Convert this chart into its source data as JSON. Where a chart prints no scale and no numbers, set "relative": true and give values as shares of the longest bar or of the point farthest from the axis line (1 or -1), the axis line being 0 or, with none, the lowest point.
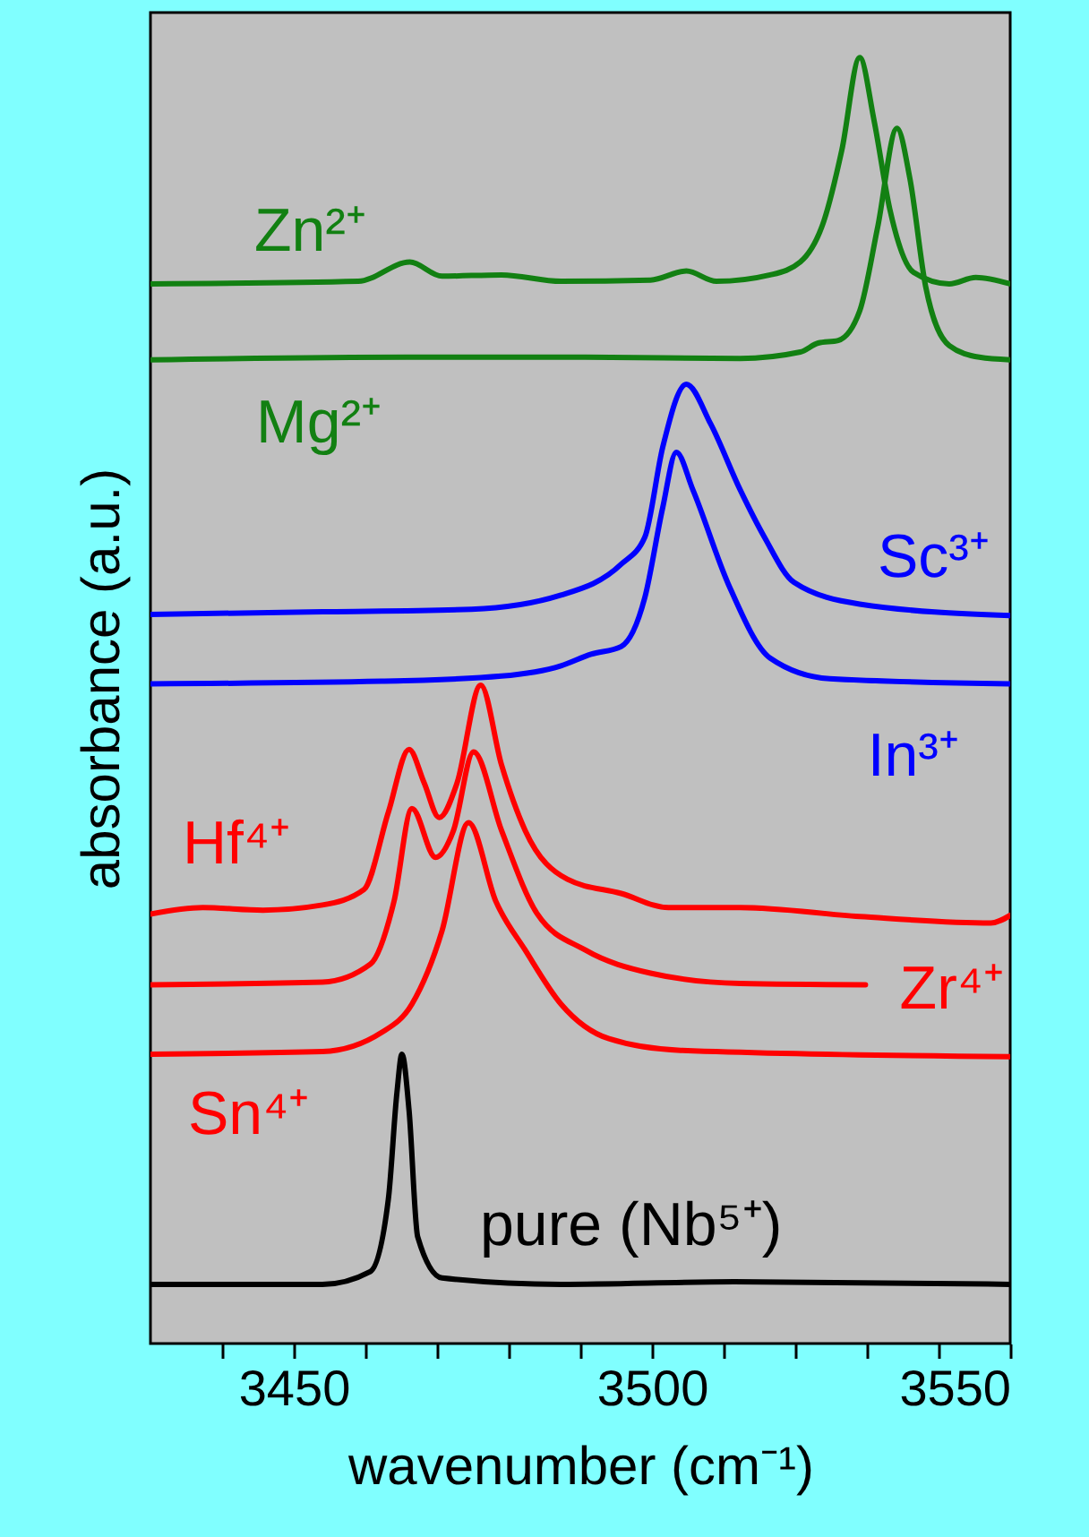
{
  "chart_data": {
    "type": "line",
    "relative": true,
    "xlabel": "wavenumber (cm⁻¹)",
    "ylabel": "absorbance (a.u.)",
    "xlim": [
      3430,
      3550
    ],
    "xticks": [
      {
        "value": 3440,
        "label": null
      },
      3450,
      {
        "value": 3460,
        "label": null
      },
      {
        "value": 3470,
        "label": null
      },
      {
        "value": 3480,
        "label": null
      },
      {
        "value": 3490,
        "label": null
      },
      3500,
      {
        "value": 3510,
        "label": null
      },
      {
        "value": 3520,
        "label": null
      },
      {
        "value": 3530,
        "label": null
      },
      {
        "value": 3540,
        "label": null
      },
      3550
    ],
    "series": [
      {
        "name": "Zn²⁺",
        "color": "#128012",
        "x": [
          3430,
          3459,
          3466.2,
          3470.7,
          3479,
          3487.3,
          3499.8,
          3504.8,
          3509,
          3516.5,
          3520.7,
          3524,
          3526.5,
          3529,
          3531,
          3533.2,
          3536.5,
          3541.5,
          3545.2,
          3550
        ],
        "values": [
          0.824,
          0.826,
          0.841,
          0.83,
          0.831,
          0.826,
          0.827,
          0.834,
          0.826,
          0.831,
          0.841,
          0.873,
          0.928,
          1.0,
          0.951,
          0.882,
          0.833,
          0.824,
          0.829,
          0.824
        ]
      },
      {
        "name": "Mg²⁺",
        "color": "#128012",
        "x": [
          3430,
          3465.7,
          3490.7,
          3512.3,
          3520.7,
          3523.2,
          3526,
          3529,
          3531.5,
          3534.2,
          3536,
          3538.2,
          3541.5,
          3545.7,
          3550
        ],
        "values": [
          0.765,
          0.767,
          0.767,
          0.766,
          0.771,
          0.778,
          0.78,
          0.803,
          0.868,
          0.945,
          0.906,
          0.822,
          0.776,
          0.767,
          0.765
        ]
      },
      {
        "name": "Sc³⁺",
        "color": "#0000ff",
        "x": [
          3430,
          3454,
          3474.8,
          3487.3,
          3495.7,
          3499,
          3501.5,
          3504.8,
          3508.2,
          3512.3,
          3515.7,
          3519.8,
          3529,
          3550
        ],
        "values": [
          0.567,
          0.569,
          0.571,
          0.582,
          0.606,
          0.627,
          0.697,
          0.746,
          0.715,
          0.664,
          0.627,
          0.592,
          0.575,
          0.566
        ]
      },
      {
        "name": "In³⁺",
        "color": "#0000ff",
        "x": [
          3430,
          3462.3,
          3479,
          3487.3,
          3491.5,
          3495.7,
          3499,
          3501.5,
          3503.4,
          3505.7,
          3510.7,
          3516.5,
          3524.8,
          3550
        ],
        "values": [
          0.513,
          0.515,
          0.519,
          0.527,
          0.536,
          0.542,
          0.58,
          0.65,
          0.693,
          0.664,
          0.59,
          0.533,
          0.517,
          0.513
        ]
      },
      {
        "name": "Hf⁴⁺",
        "color": "#ff0000",
        "x": [
          3430,
          3437.3,
          3445.7,
          3454,
          3459.8,
          3463.2,
          3466.1,
          3468.2,
          3470.3,
          3472.8,
          3476.1,
          3479,
          3482.3,
          3488.2,
          3495.7,
          3502.3,
          3512.3,
          3529,
          3547.3,
          3550
        ],
        "values": [
          0.334,
          0.339,
          0.337,
          0.341,
          0.353,
          0.413,
          0.462,
          0.436,
          0.409,
          0.436,
          0.512,
          0.45,
          0.399,
          0.361,
          0.35,
          0.339,
          0.339,
          0.332,
          0.327,
          0.333
        ]
      },
      {
        "name": "Zr⁴⁺",
        "color": "#ff0000",
        "x": [
          3430,
          3454,
          3460.7,
          3464,
          3466.5,
          3469.8,
          3472.3,
          3475.1,
          3479,
          3484,
          3490.7,
          3499.8,
          3512.3,
          3529.8
        ],
        "values": [
          0.279,
          0.281,
          0.295,
          0.344,
          0.416,
          0.378,
          0.399,
          0.46,
          0.399,
          0.334,
          0.306,
          0.288,
          0.28,
          0.279
        ]
      },
      {
        "name": "Sn⁴⁺",
        "color": "#ff0000",
        "x": [
          3430,
          3454,
          3462.3,
          3466.5,
          3470.7,
          3474.4,
          3478.2,
          3482.3,
          3487.3,
          3494,
          3504,
          3550
        ],
        "values": [
          0.225,
          0.227,
          0.242,
          0.264,
          0.321,
          0.405,
          0.344,
          0.306,
          0.264,
          0.237,
          0.228,
          0.223
        ]
      },
      {
        "name": "pure (Nb⁵⁺)",
        "color": "#000000",
        "x": [
          3430,
          3454,
          3460.7,
          3463.2,
          3464.4,
          3465.1,
          3466.1,
          3467.3,
          3470.7,
          3487.3,
          3511.5,
          3550
        ],
        "values": [
          0.046,
          0.046,
          0.056,
          0.112,
          0.195,
          0.225,
          0.181,
          0.083,
          0.051,
          0.046,
          0.048,
          0.046
        ]
      }
    ]
  }
}
